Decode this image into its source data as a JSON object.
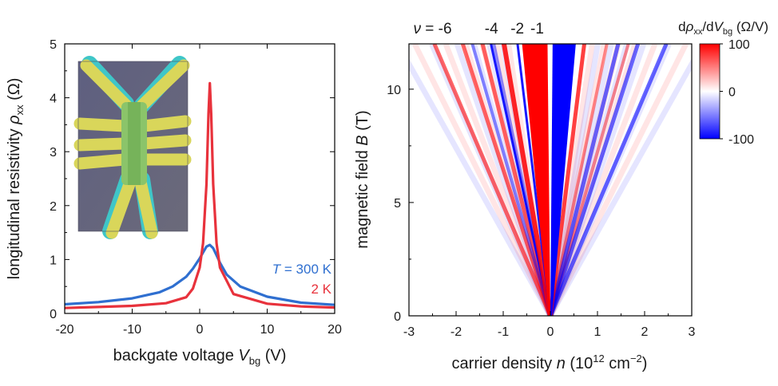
{
  "chart_data": [
    {
      "type": "line",
      "xlabel": {
        "main": "backgate voltage ",
        "var": "V",
        "sub": "bg",
        "unit": " (V)"
      },
      "ylabel": {
        "main": "longitudinal resistivity ",
        "var": "ρ",
        "sub": "xx",
        "unit": "  (Ω)"
      },
      "xlim": [
        -20,
        20
      ],
      "ylim": [
        0,
        5
      ],
      "xticks": [
        -20,
        -10,
        0,
        10,
        20
      ],
      "yticks": [
        0,
        1,
        2,
        3,
        4,
        5
      ],
      "inset_image": "graphene-hall-bar-device-micrograph",
      "series": [
        {
          "name": {
            "var": "T",
            "rest": " = 300 K"
          },
          "color": "#2f6fd0",
          "x": [
            -20,
            -15,
            -10,
            -6,
            -4,
            -2,
            -1,
            0,
            0.5,
            1,
            1.5,
            2,
            2.5,
            3,
            4,
            6,
            10,
            15,
            20
          ],
          "y": [
            0.17,
            0.21,
            0.28,
            0.39,
            0.5,
            0.68,
            0.83,
            1.02,
            1.13,
            1.24,
            1.27,
            1.21,
            1.08,
            0.94,
            0.72,
            0.5,
            0.31,
            0.2,
            0.16
          ]
        },
        {
          "name": {
            "var": "",
            "rest": "2 K"
          },
          "color": "#e8323c",
          "x": [
            -20,
            -15,
            -10,
            -5,
            -2,
            -1,
            0,
            0.5,
            1,
            1.3,
            1.5,
            1.7,
            2,
            2.5,
            3,
            5,
            10,
            15,
            20
          ],
          "y": [
            0.1,
            0.12,
            0.14,
            0.19,
            0.3,
            0.46,
            0.85,
            1.3,
            2.4,
            3.7,
            4.27,
            3.7,
            2.4,
            1.3,
            0.85,
            0.36,
            0.18,
            0.13,
            0.11
          ]
        }
      ]
    },
    {
      "type": "heatmap",
      "xlabel": {
        "main": "carrier density ",
        "var": "n",
        "unit": " (10",
        "sup1": "12",
        "unit2": " cm",
        "sup2": "−2",
        "unit3": ")"
      },
      "ylabel": {
        "main": "magnetic field ",
        "var": "B",
        "unit": " (T)"
      },
      "xlim": [
        -3,
        3
      ],
      "ylim": [
        0,
        12
      ],
      "xticks": [
        -3,
        -2,
        -1,
        0,
        1,
        2,
        3
      ],
      "yticks": [
        0,
        5,
        10
      ],
      "filling_factors": {
        "nu_symbol": "ν",
        "labels": [
          {
            "text": " = -6",
            "n": -2.5
          },
          {
            "text": "-4",
            "n": -1.25
          },
          {
            "text": "-2",
            "n": -0.7
          },
          {
            "text": "-1",
            "n": -0.28
          }
        ]
      },
      "colorbar": {
        "title": {
          "d1": "d",
          "var1": "ρ",
          "sub": "xx",
          "slash": "/d",
          "var2": "V",
          "sub2": "bg",
          "unit": " (Ω/V)"
        },
        "ticks": [
          100,
          0,
          -100
        ],
        "range": [
          -100,
          100
        ],
        "colors": {
          "pos": "#ff0000",
          "zero": "#ffffff",
          "neg": "#0000ff"
        }
      }
    }
  ]
}
